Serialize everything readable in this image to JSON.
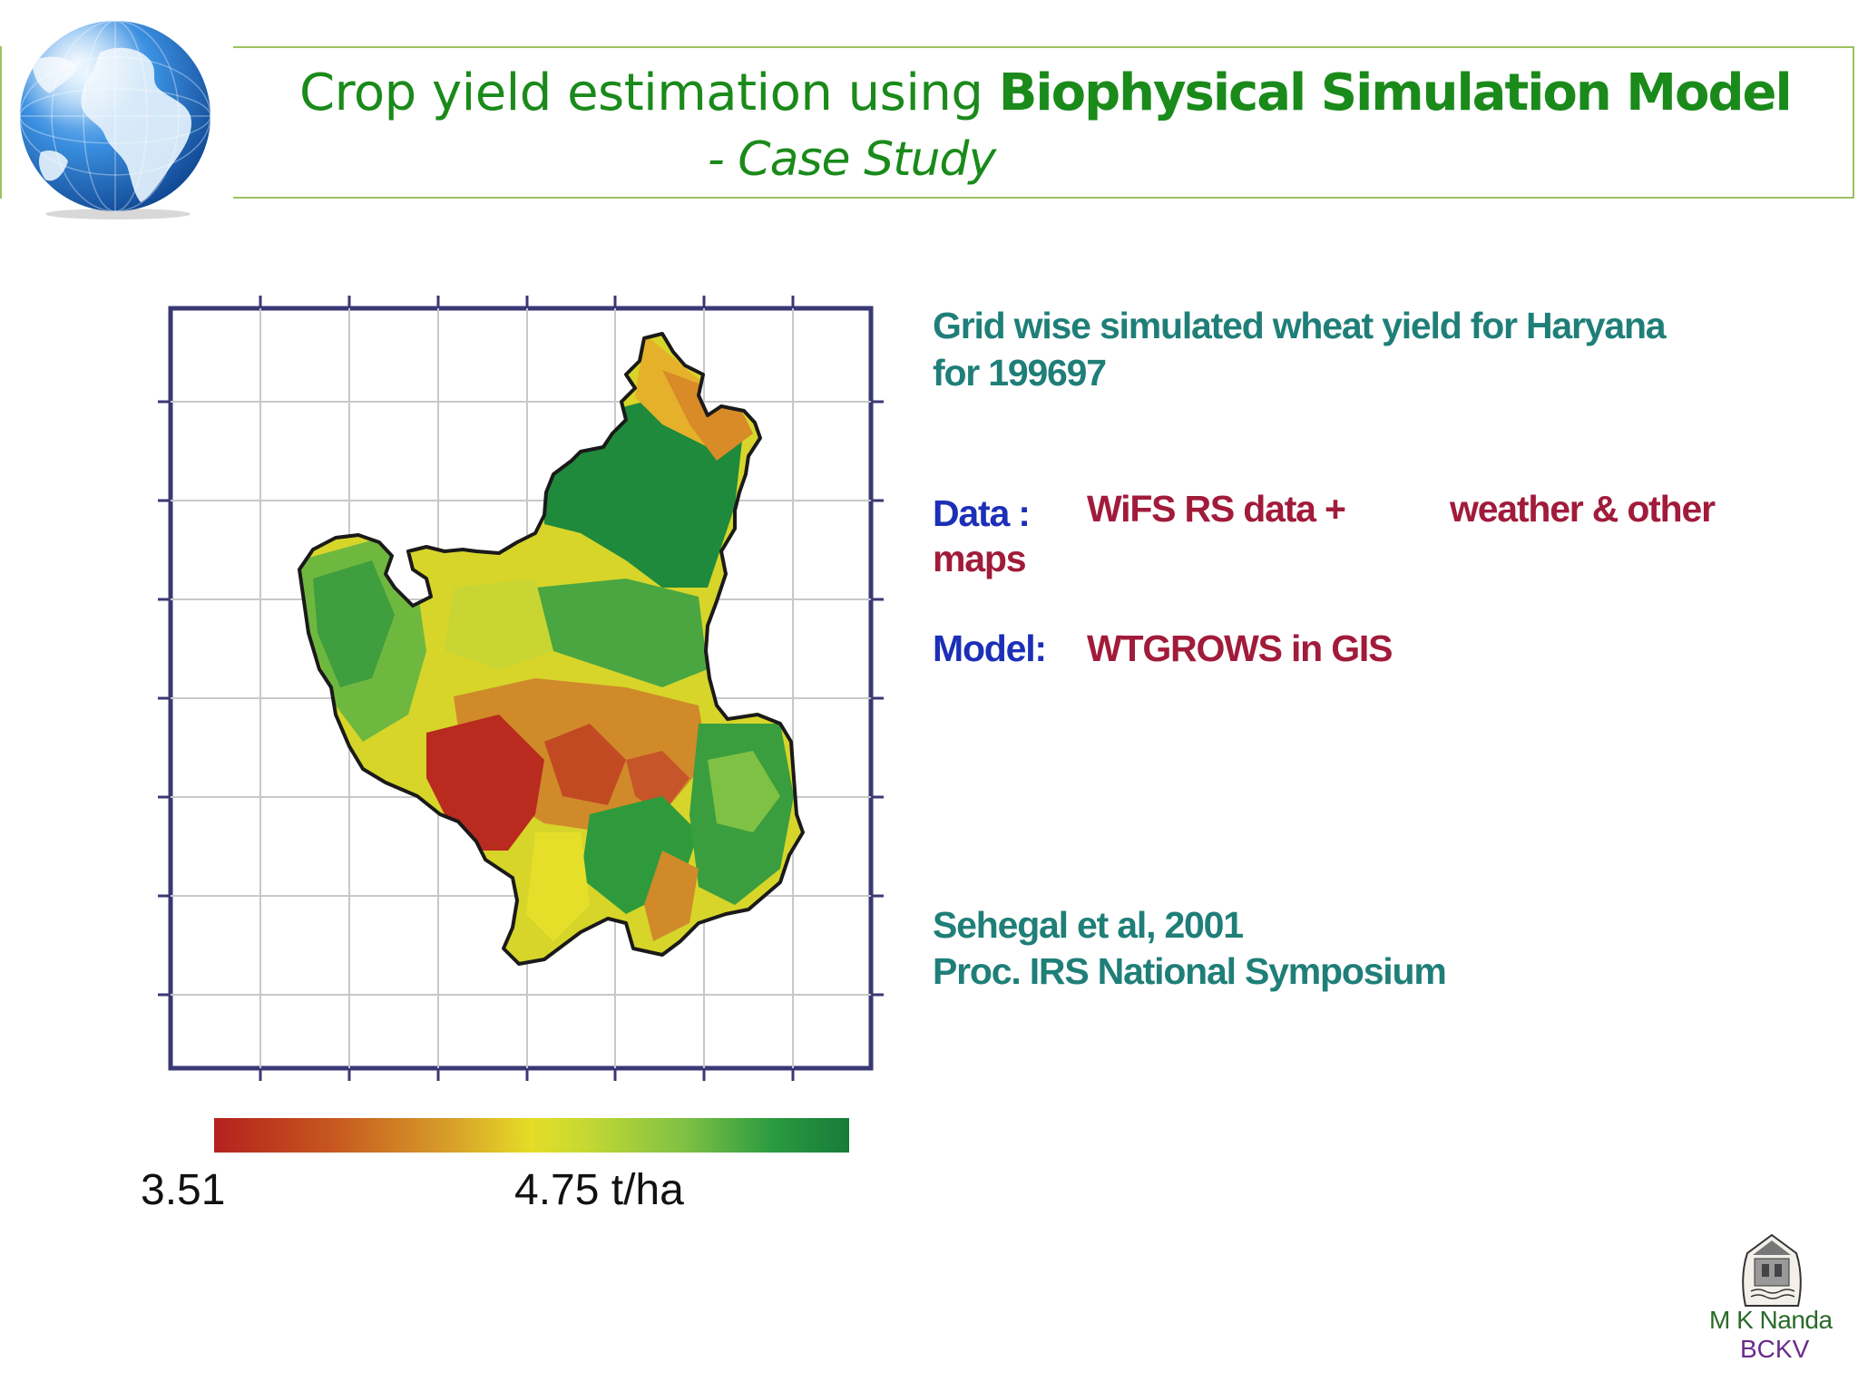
{
  "title": {
    "prefix": "Crop yield estimation using ",
    "bold": "Biophysical Simulation Model",
    "subtitle": "- Case Study"
  },
  "map": {
    "legend": {
      "min_label": "3.51",
      "max_label": "4.75 t/ha"
    },
    "colors": {
      "low": "#b3221e",
      "mid": "#e5dd27",
      "high": "#177c3a",
      "frame": "#3b3875",
      "grid": "#c8c8c8",
      "boundary": "#1a1a1a"
    }
  },
  "info": {
    "heading_line1": "Grid wise simulated wheat yield for Haryana",
    "heading_line2": "for 199697",
    "data_label": "Data :",
    "data_value1": "WiFS RS data +",
    "data_value2": "weather & other",
    "data_value3": "maps",
    "model_label": "Model:",
    "model_value": "WTGROWS in GIS",
    "citation_line1": "Sehegal et al,  2001",
    "citation_line2": "Proc. IRS  National Symposium"
  },
  "footer": {
    "author": "M K Nanda",
    "affiliation": "BCKV"
  }
}
